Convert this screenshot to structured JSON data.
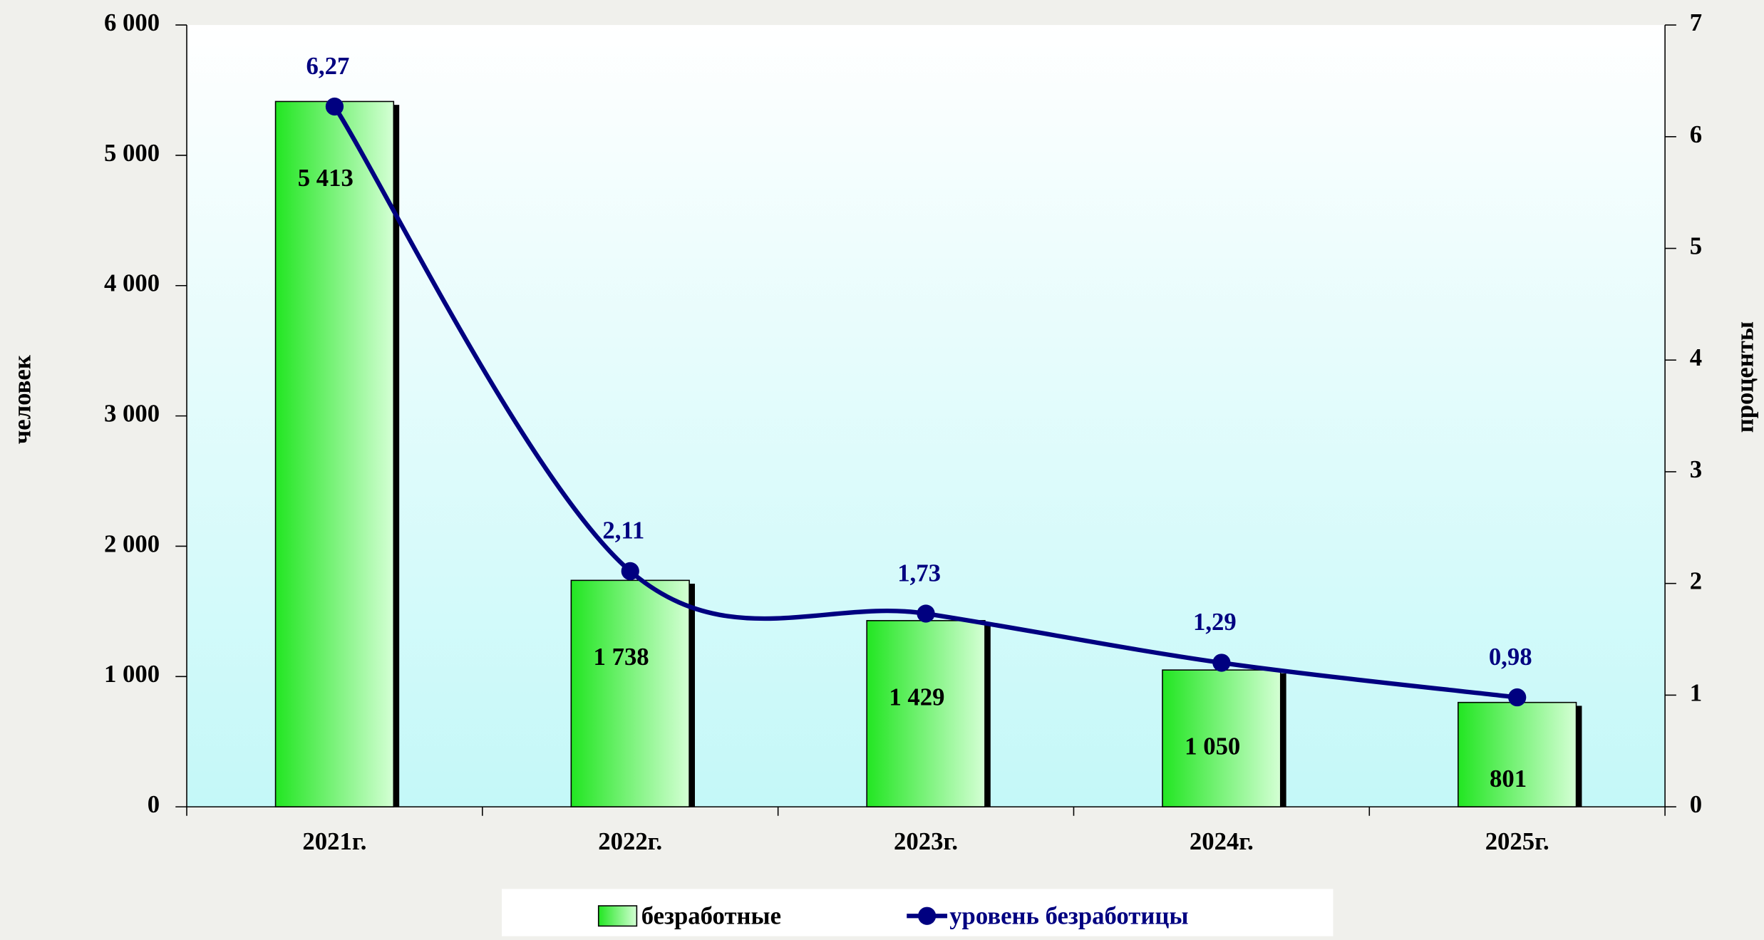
{
  "chart_data": {
    "type": "bar",
    "categories": [
      "2021г.",
      "2022г.",
      "2023г.",
      "2024г.",
      "2025г."
    ],
    "series": [
      {
        "name": "безработные",
        "type": "bar",
        "color": "#22e622",
        "values": [
          5413,
          1738,
          1429,
          1050,
          801
        ],
        "value_labels": [
          "5 413",
          "1 738",
          "1 429",
          "1 050",
          "801"
        ]
      },
      {
        "name": "уровень безработицы",
        "type": "line",
        "axis": "y2",
        "color": "#000080",
        "values": [
          6.27,
          2.11,
          1.73,
          1.29,
          0.98
        ],
        "value_labels": [
          "6,27",
          "2,11",
          "1,73",
          "1,29",
          "0,98"
        ]
      }
    ],
    "ylim": [
      0,
      6000
    ],
    "yticks": [
      0,
      {
        "value": 1000,
        "label": "1 000"
      },
      {
        "value": 2000,
        "label": "2 000"
      },
      {
        "value": 3000,
        "label": "3 000"
      },
      {
        "value": 4000,
        "label": "4 000"
      },
      {
        "value": 5000,
        "label": "5 000"
      },
      {
        "value": 6000,
        "label": "6 000"
      }
    ],
    "y2lim": [
      0,
      7
    ],
    "y2ticks": [
      0,
      1,
      2,
      3,
      4,
      5,
      6,
      7
    ],
    "ylabel": "человек",
    "y2label": "проценты",
    "legend": "bottom"
  }
}
